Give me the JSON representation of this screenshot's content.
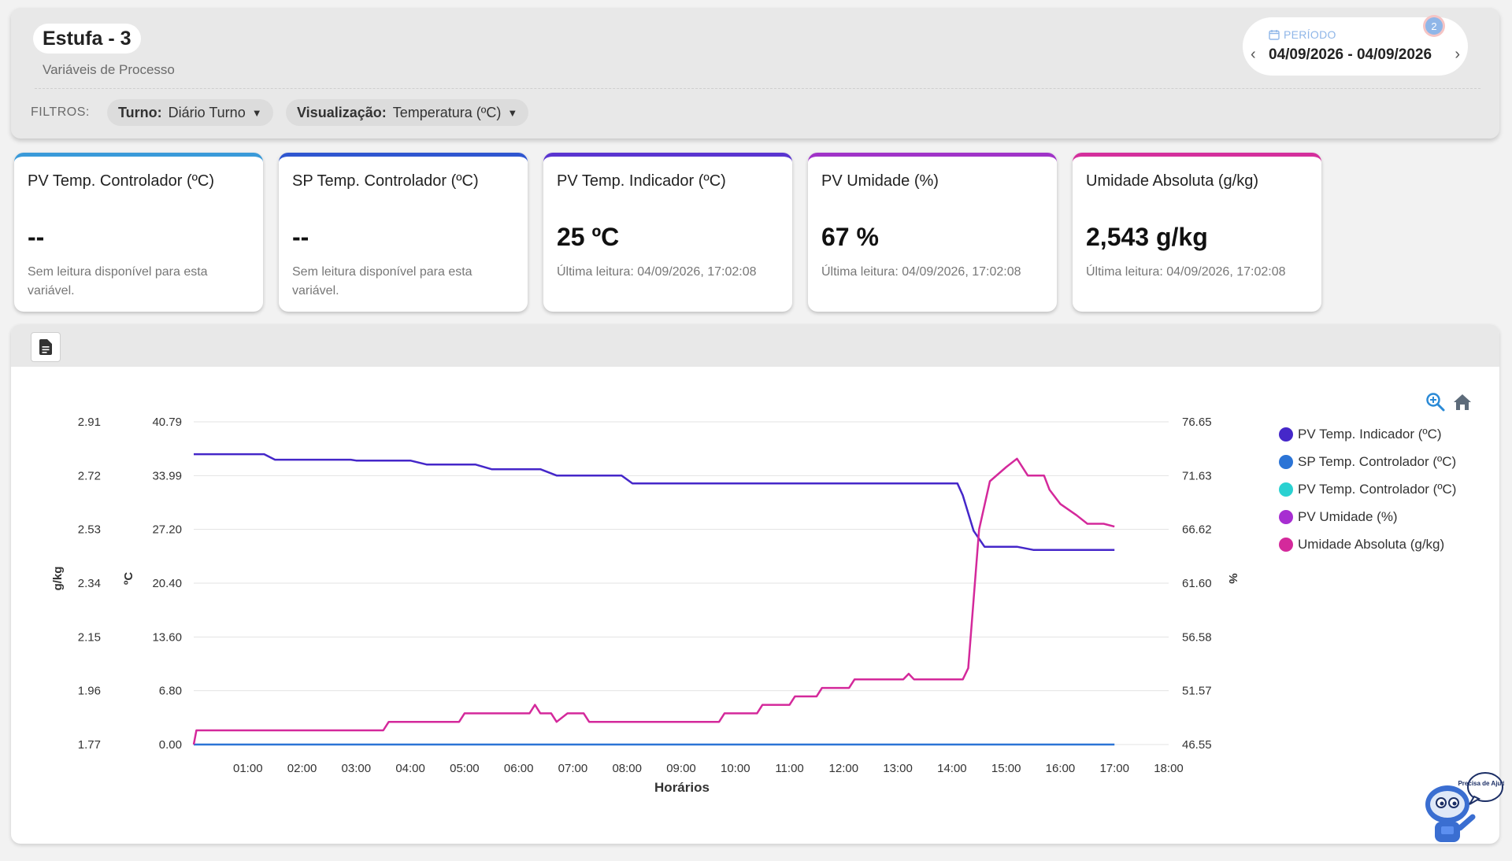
{
  "header": {
    "title": "Estufa - 3",
    "subtitle": "Variáveis de Processo",
    "period_label": "PERÍODO",
    "period_dates": "04/09/2026 - 04/09/2026",
    "period_badge": "2",
    "filters_label": "FILTROS:",
    "filters": [
      {
        "label": "Turno:",
        "value": "Diário Turno"
      },
      {
        "label": "Visualização:",
        "value": "Temperatura (ºC)"
      }
    ]
  },
  "cards": [
    {
      "title": "PV Temp. Controlador (ºC)",
      "value": "--",
      "desc": "Sem leitura disponível para esta variável.",
      "color": "#3a9ad9"
    },
    {
      "title": "SP Temp. Controlador (ºC)",
      "value": "--",
      "desc": "Sem leitura disponível para esta variável.",
      "color": "#2f56d0"
    },
    {
      "title": "PV Temp. Indicador (ºC)",
      "value": "25 ºC",
      "desc": "Última leitura: 04/09/2026, 17:02:08",
      "color": "#5a35d0"
    },
    {
      "title": "PV Umidade (%)",
      "value": "67 %",
      "desc": "Última leitura: 04/09/2026, 17:02:08",
      "color": "#a033c8"
    },
    {
      "title": "Umidade Absoluta (g/kg)",
      "value": "2,543 g/kg",
      "desc": "Última leitura: 04/09/2026, 17:02:08",
      "color": "#d42f9c"
    }
  ],
  "chart_data": {
    "type": "line",
    "xlabel": "Horários",
    "x_ticks": [
      "01:00",
      "02:00",
      "03:00",
      "04:00",
      "05:00",
      "06:00",
      "07:00",
      "08:00",
      "09:00",
      "10:00",
      "11:00",
      "12:00",
      "13:00",
      "14:00",
      "15:00",
      "16:00",
      "17:00",
      "18:00"
    ],
    "x_range_hours": [
      0.0,
      18.0
    ],
    "axes": [
      {
        "label": "g/kg",
        "side": "left-outer",
        "ticks": [
          "2.91",
          "2.72",
          "2.53",
          "2.34",
          "2.15",
          "1.96",
          "1.77"
        ],
        "range": [
          1.77,
          2.91
        ]
      },
      {
        "label": "ºC",
        "side": "left-inner",
        "ticks": [
          "40.79",
          "33.99",
          "27.20",
          "20.40",
          "13.60",
          "6.80",
          "0.00"
        ],
        "range": [
          0.0,
          40.79
        ]
      },
      {
        "label": "%",
        "side": "right",
        "ticks": [
          "76.65",
          "71.63",
          "66.62",
          "61.60",
          "56.58",
          "51.57",
          "46.55"
        ],
        "range": [
          46.55,
          76.65
        ]
      }
    ],
    "series": [
      {
        "name": "PV Temp. Indicador (ºC)",
        "color": "#4527c9",
        "axis": "ºC",
        "points": [
          [
            0.0,
            36.7
          ],
          [
            1.3,
            36.7
          ],
          [
            1.5,
            36.0
          ],
          [
            2.9,
            36.0
          ],
          [
            3.0,
            35.9
          ],
          [
            4.0,
            35.9
          ],
          [
            4.3,
            35.4
          ],
          [
            5.2,
            35.4
          ],
          [
            5.5,
            34.8
          ],
          [
            6.4,
            34.8
          ],
          [
            6.7,
            34.0
          ],
          [
            7.9,
            34.0
          ],
          [
            8.1,
            33.0
          ],
          [
            13.5,
            33.0
          ],
          [
            14.1,
            33.0
          ],
          [
            14.2,
            31.5
          ],
          [
            14.4,
            27.0
          ],
          [
            14.6,
            25.0
          ],
          [
            15.2,
            25.0
          ],
          [
            15.5,
            24.6
          ],
          [
            17.0,
            24.6
          ]
        ]
      },
      {
        "name": "SP Temp. Controlador (ºC)",
        "color": "#2b74d6",
        "axis": "ºC",
        "points": [
          [
            0.0,
            0.0
          ],
          [
            17.0,
            0.0
          ]
        ]
      },
      {
        "name": "PV Temp. Controlador (ºC)",
        "color": "#2ad1d1",
        "axis": "ºC",
        "points": []
      },
      {
        "name": "PV Umidade (%)",
        "color": "#a72ed1",
        "axis": "%",
        "points": []
      },
      {
        "name": "Umidade Absoluta (g/kg)",
        "color": "#d4299b",
        "axis": "g/kg",
        "points": [
          [
            0.0,
            1.77
          ],
          [
            0.05,
            1.82
          ],
          [
            0.1,
            1.82
          ],
          [
            3.5,
            1.82
          ],
          [
            3.6,
            1.85
          ],
          [
            4.9,
            1.85
          ],
          [
            5.0,
            1.88
          ],
          [
            6.2,
            1.88
          ],
          [
            6.3,
            1.91
          ],
          [
            6.4,
            1.88
          ],
          [
            6.6,
            1.88
          ],
          [
            6.7,
            1.85
          ],
          [
            6.9,
            1.88
          ],
          [
            7.2,
            1.88
          ],
          [
            7.3,
            1.85
          ],
          [
            9.7,
            1.85
          ],
          [
            9.8,
            1.88
          ],
          [
            10.4,
            1.88
          ],
          [
            10.5,
            1.91
          ],
          [
            11.0,
            1.91
          ],
          [
            11.1,
            1.94
          ],
          [
            11.5,
            1.94
          ],
          [
            11.6,
            1.97
          ],
          [
            12.1,
            1.97
          ],
          [
            12.2,
            2.0
          ],
          [
            13.1,
            2.0
          ],
          [
            13.2,
            2.02
          ],
          [
            13.3,
            2.0
          ],
          [
            14.2,
            2.0
          ],
          [
            14.3,
            2.04
          ],
          [
            14.5,
            2.53
          ],
          [
            14.7,
            2.7
          ],
          [
            15.0,
            2.75
          ],
          [
            15.2,
            2.78
          ],
          [
            15.4,
            2.72
          ],
          [
            15.7,
            2.72
          ],
          [
            15.8,
            2.67
          ],
          [
            16.0,
            2.62
          ],
          [
            16.3,
            2.58
          ],
          [
            16.5,
            2.55
          ],
          [
            16.8,
            2.55
          ],
          [
            17.0,
            2.54
          ]
        ]
      }
    ],
    "legend": [
      {
        "name": "PV Temp. Indicador (ºC)",
        "color": "#4527c9"
      },
      {
        "name": "SP Temp. Controlador (ºC)",
        "color": "#2b74d6"
      },
      {
        "name": "PV Temp. Controlador (ºC)",
        "color": "#2ad1d1"
      },
      {
        "name": "PV Umidade (%)",
        "color": "#a72ed1"
      },
      {
        "name": "Umidade Absoluta (g/kg)",
        "color": "#d4299b"
      }
    ],
    "legend_position": "right",
    "grid": true
  },
  "assistant": {
    "label": "Precisa de Ajuda?"
  }
}
